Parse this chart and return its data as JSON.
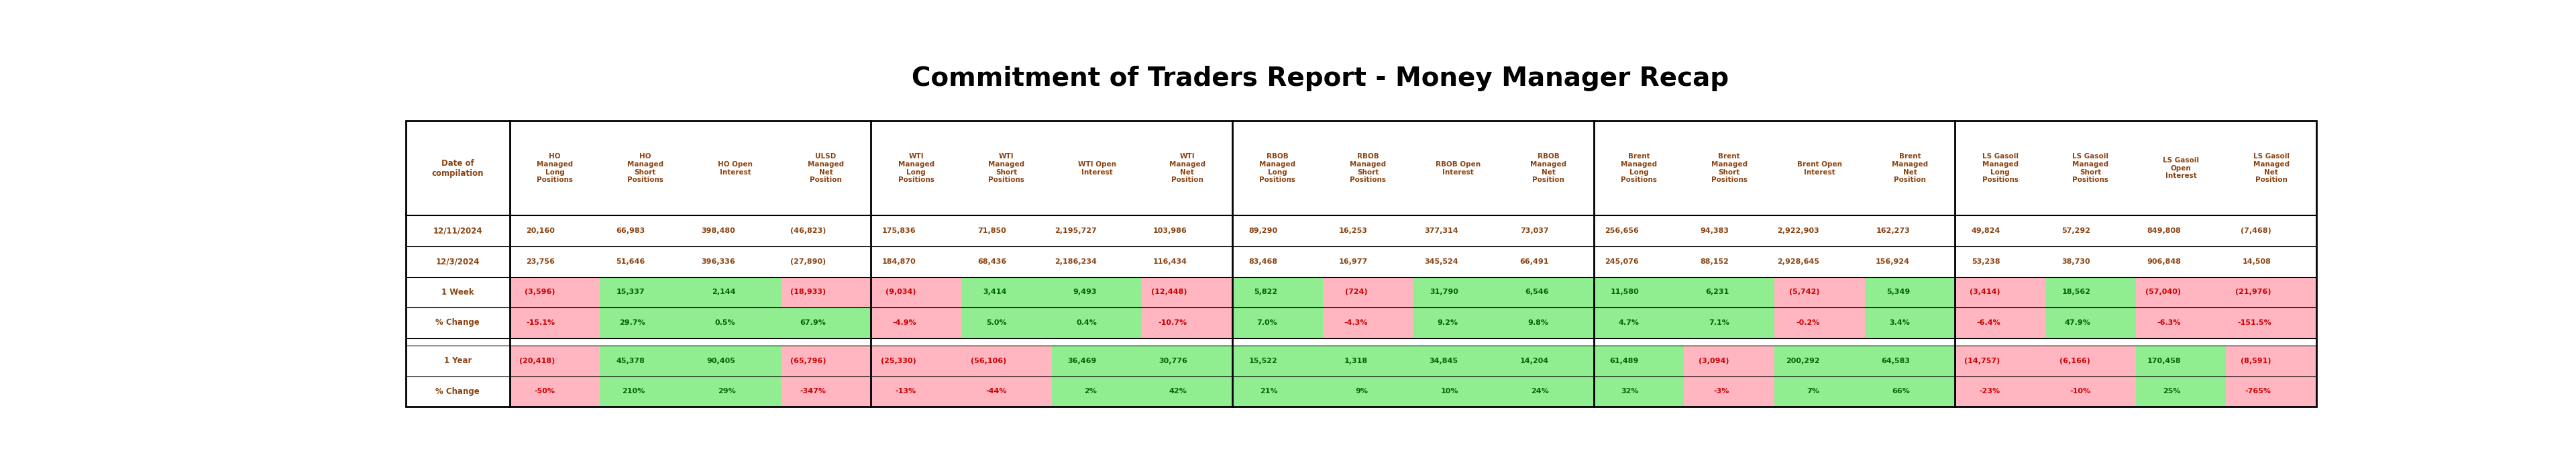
{
  "title": "Commitment of Traders Report - Money Manager Recap",
  "header_color": "#8B4513",
  "bg_color": "#FFFFFF",
  "pink": "#FFB6C1",
  "green": "#90EE90",
  "red_text": "#CC0000",
  "green_text": "#006600",
  "dark_text": "#8B4513",
  "col_headers": [
    [
      "HO",
      "Managed",
      "Long",
      "Positions"
    ],
    [
      "HO",
      "Managed",
      "Short",
      "Positions"
    ],
    [
      "HO Open",
      "Interest",
      "",
      ""
    ],
    [
      "ULSD",
      "Managed",
      "Net",
      "Position"
    ],
    [
      "WTI",
      "Managed",
      "Long",
      "Positions"
    ],
    [
      "WTI",
      "Managed",
      "Short",
      "Positions"
    ],
    [
      "WTI Open",
      "Interest",
      "",
      ""
    ],
    [
      "WTI",
      "Managed",
      "Net",
      "Position"
    ],
    [
      "RBOB",
      "Managed",
      "Long",
      "Positions"
    ],
    [
      "RBOB",
      "Managed",
      "Short",
      "Positions"
    ],
    [
      "RBOB Open",
      "Interest",
      "",
      ""
    ],
    [
      "RBOB",
      "Managed",
      "Net",
      "Position"
    ],
    [
      "Brent",
      "Managed",
      "Long",
      "Positions"
    ],
    [
      "Brent",
      "Managed",
      "Short",
      "Positions"
    ],
    [
      "Brent Open",
      "Interest",
      "",
      ""
    ],
    [
      "Brent",
      "Managed",
      "Net",
      "Position"
    ],
    [
      "LS Gasoil",
      "Managed",
      "Long",
      "Positions"
    ],
    [
      "LS Gasoil",
      "Managed",
      "Short",
      "Positions"
    ],
    [
      "LS Gasoil",
      "Open",
      "Interest",
      ""
    ],
    [
      "LS Gasoil",
      "Managed",
      "Net",
      "Position"
    ]
  ],
  "row_label_header": "Date of\ncompilation",
  "rows": [
    {
      "label": "12/11/2024",
      "values": [
        "20,160",
        "66,983",
        "398,480",
        "(46,823)",
        "175,836",
        "71,850",
        "2,195,727",
        "103,986",
        "89,290",
        "16,253",
        "377,314",
        "73,037",
        "256,656",
        "94,383",
        "2,922,903",
        "162,273",
        "49,824",
        "57,292",
        "849,808",
        "(7,468)"
      ],
      "colored": false
    },
    {
      "label": "12/3/2024",
      "values": [
        "23,756",
        "51,646",
        "396,336",
        "(27,890)",
        "184,870",
        "68,436",
        "2,186,234",
        "116,434",
        "83,468",
        "16,977",
        "345,524",
        "66,491",
        "245,076",
        "88,152",
        "2,928,645",
        "156,924",
        "53,238",
        "38,730",
        "906,848",
        "14,508"
      ],
      "colored": false
    },
    {
      "label": "1 Week",
      "values": [
        "(3,596)",
        "15,337",
        "2,144",
        "(18,933)",
        "(9,034)",
        "3,414",
        "9,493",
        "(12,448)",
        "5,822",
        "(724)",
        "31,790",
        "6,546",
        "11,580",
        "6,231",
        "(5,742)",
        "5,349",
        "(3,414)",
        "18,562",
        "(57,040)",
        "(21,976)"
      ],
      "colored": true
    },
    {
      "label": "% Change",
      "values": [
        "-15.1%",
        "29.7%",
        "0.5%",
        "67.9%",
        "-4.9%",
        "5.0%",
        "0.4%",
        "-10.7%",
        "7.0%",
        "-4.3%",
        "9.2%",
        "9.8%",
        "4.7%",
        "7.1%",
        "-0.2%",
        "3.4%",
        "-6.4%",
        "47.9%",
        "-6.3%",
        "-151.5%"
      ],
      "colored": true
    },
    {
      "label": "",
      "values": null,
      "colored": false
    },
    {
      "label": "1 Year",
      "values": [
        "(20,418)",
        "45,378",
        "90,405",
        "(65,796)",
        "(25,330)",
        "(56,106)",
        "36,469",
        "30,776",
        "15,522",
        "1,318",
        "34,845",
        "14,204",
        "61,489",
        "(3,094)",
        "200,292",
        "64,583",
        "(14,757)",
        "(6,166)",
        "170,458",
        "(8,591)"
      ],
      "colored": true
    },
    {
      "label": "% Change",
      "values": [
        "-50%",
        "210%",
        "29%",
        "-347%",
        "-13%",
        "-44%",
        "2%",
        "42%",
        "21%",
        "9%",
        "10%",
        "24%",
        "32%",
        "-3%",
        "7%",
        "66%",
        "-23%",
        "-10%",
        "25%",
        "-765%"
      ],
      "colored": true
    }
  ]
}
